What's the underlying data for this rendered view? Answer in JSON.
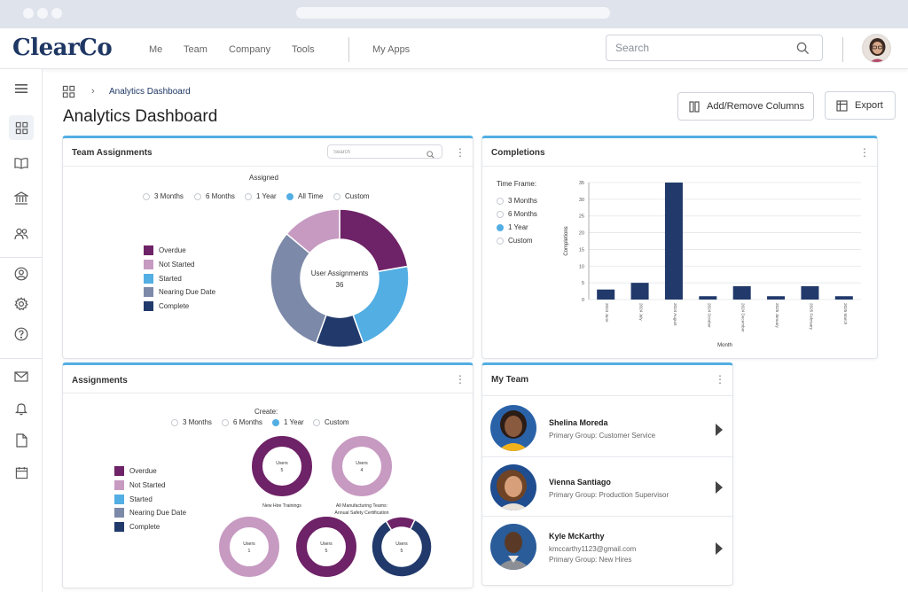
{
  "header": {
    "logo_main": "ClearCo",
    "nav": [
      "Me",
      "Team",
      "Company",
      "Tools"
    ],
    "my_apps": "My Apps",
    "search_placeholder": "Search"
  },
  "breadcrumb": {
    "current": "Analytics Dashboard"
  },
  "page_title": "Analytics Dashboard",
  "actions": {
    "columns": "Add/Remove Columns",
    "export": "Export"
  },
  "colors": {
    "overdue": "#6e2267",
    "not_started": "#c79ac2",
    "started": "#52aee3",
    "nearing_due": "#7c89a8",
    "complete": "#213a6b",
    "accent": "#52aee3"
  },
  "team_assignments": {
    "title": "Team Assignments",
    "search_placeholder": "Search",
    "subtitle": "Assigned",
    "options": [
      "3 Months",
      "6 Months",
      "1 Year",
      "All Time",
      "Custom"
    ],
    "selected": "All Time",
    "legend": [
      "Overdue",
      "Not Started",
      "Started",
      "Nearing Due Date",
      "Complete"
    ],
    "center_label": "User Assignments",
    "center_value": "36",
    "donut": [
      {
        "name": "Overdue",
        "value": 8
      },
      {
        "name": "Started",
        "value": 8
      },
      {
        "name": "Complete",
        "value": 4
      },
      {
        "name": "Nearing Due Date",
        "value": 11
      },
      {
        "name": "Not Started",
        "value": 5
      }
    ]
  },
  "completions": {
    "title": "Completions",
    "time_frame_label": "Time Frame:",
    "options": [
      "3 Months",
      "6 Months",
      "1 Year",
      "Custom"
    ],
    "selected": "1 Year",
    "chart_data": {
      "type": "bar",
      "categories": [
        "2024 June",
        "2024 July",
        "2024 August",
        "2024 October",
        "2024 December",
        "2025 January",
        "2025 February",
        "2025 March"
      ],
      "values": [
        3,
        5,
        35,
        1,
        4,
        1,
        4,
        1
      ],
      "xlabel": "Month",
      "ylabel": "Completions",
      "yticks": [
        "0",
        "5",
        "10",
        "15",
        "20",
        "25",
        "30",
        "35"
      ],
      "ylim": [
        0,
        35
      ],
      "grid": true
    }
  },
  "assignments": {
    "title": "Assignments",
    "subtitle": "Create:",
    "options": [
      "3 Months",
      "6 Months",
      "1 Year",
      "Custom"
    ],
    "selected": "1 Year",
    "legend": [
      "Overdue",
      "Not Started",
      "Started",
      "Nearing Due Date",
      "Complete"
    ],
    "donuts": [
      {
        "label": "Users",
        "value": "5",
        "caption": "New Hire Trainings",
        "caption2": "",
        "segments": [
          {
            "name": "Overdue",
            "value": 1
          }
        ]
      },
      {
        "label": "Users",
        "value": "4",
        "caption": "All Manufacturing Teams:",
        "caption2": "Annual Safety Certification",
        "segments": [
          {
            "name": "Not Started",
            "value": 1
          }
        ]
      },
      {
        "label": "Users",
        "value": "1",
        "caption": "",
        "caption2": "",
        "segments": [
          {
            "name": "Not Started",
            "value": 1
          }
        ]
      },
      {
        "label": "Users",
        "value": "5",
        "caption": "",
        "caption2": "",
        "segments": [
          {
            "name": "Overdue",
            "value": 1
          }
        ]
      },
      {
        "label": "Users",
        "value": "5",
        "caption": "",
        "caption2": "",
        "segments": [
          {
            "name": "Overdue",
            "value": 0.16
          },
          {
            "name": "Complete",
            "value": 0.84
          }
        ]
      }
    ]
  },
  "my_team": {
    "title": "My Team",
    "members": [
      {
        "name": "Shelina Moreda",
        "line1": "Primary Group: Customer Service",
        "line2": ""
      },
      {
        "name": "Vienna Santiago",
        "line1": "Primary Group: Production Supervisor",
        "line2": ""
      },
      {
        "name": "Kyle McKarthy",
        "line1": "kmccarthy1123@gmail.com",
        "line2": "Primary Group: New Hires"
      }
    ]
  }
}
